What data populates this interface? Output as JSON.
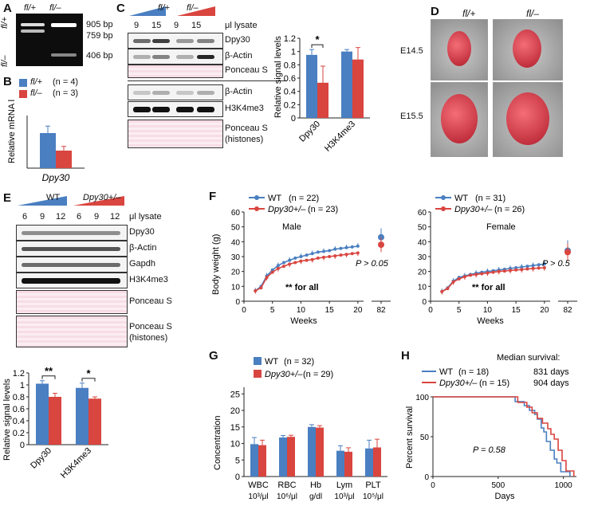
{
  "panels": {
    "A": {
      "letter": "A",
      "col_fl_plus": "fl/+",
      "col_fl_minus": "fl/–",
      "row_fl_plus": "fl/+",
      "row_fl_minus": "fl/–",
      "bands": [
        "905 bp",
        "759 bp",
        "406 bp"
      ]
    },
    "B": {
      "letter": "B",
      "legend": [
        {
          "label": "fl/+",
          "n": "(n = 4)",
          "color": "#4a7fc1"
        },
        {
          "label": "fl/–",
          "n": "(n = 3)",
          "color": "#d9453f"
        }
      ],
      "ylabel": "Relative mRNA levels",
      "xlabel": "Dpy30"
    },
    "C": {
      "letter": "C",
      "groups": [
        "fl/+",
        "fl/–"
      ],
      "lanes": [
        "9",
        "15",
        "9",
        "15"
      ],
      "lysate": "μl lysate",
      "rows": [
        "Dpy30",
        "β-Actin",
        "Ponceau S",
        "β-Actin",
        "H3K4me3",
        "Ponceau S",
        "(histones)"
      ]
    },
    "D": {
      "letter": "D",
      "cols": [
        "fl/+",
        "fl/–"
      ],
      "rows": [
        "E14.5",
        "E15.5"
      ]
    },
    "E": {
      "letter": "E",
      "groups": [
        "WT",
        "Dpy30+/–"
      ],
      "lanes": [
        "6",
        "9",
        "12",
        "6",
        "9",
        "12"
      ],
      "lysate": "μl lysate",
      "rows": [
        "Dpy30",
        "β-Actin",
        "Gapdh",
        "H3K4me3",
        "Ponceau S",
        "Ponceau S",
        "(histones)"
      ]
    },
    "F": {
      "letter": "F",
      "ylabel": "Body weight (g)",
      "xlabel": "Weeks",
      "male": {
        "legend": [
          {
            "label": "WT",
            "n": "(n = 22)"
          },
          {
            "label": "Dpy30+/–",
            "n": "(n = 23)"
          }
        ],
        "title": "Male",
        "pval": "P > 0.05",
        "sig": "** for all"
      },
      "female": {
        "legend": [
          {
            "label": "WT",
            "n": "(n = 31)"
          },
          {
            "label": "Dpy30+/–",
            "n": "(n = 26)"
          }
        ],
        "title": "Female",
        "pval": "P > 0.5",
        "sig": "** for all"
      }
    },
    "G": {
      "letter": "G",
      "legend": [
        {
          "label": "WT",
          "n": "(n = 32)"
        },
        {
          "label": "Dpy30+/–",
          "n": "(n = 29)"
        }
      ],
      "ylabel": "Concentration",
      "cats": [
        "WBC",
        "RBC",
        "Hb",
        "Lym",
        "PLT"
      ],
      "units": [
        "10³/μl",
        "10⁶/μl",
        "g/dl",
        "10³/μl",
        "10⁵/μl"
      ]
    },
    "H": {
      "letter": "H",
      "legend": [
        {
          "label": "WT",
          "n": "(n = 18)",
          "median": "831 days"
        },
        {
          "label": "Dpy30+/–",
          "n": "(n = 15)",
          "median": "904 days"
        }
      ],
      "header": "Median survival:",
      "ylabel": "Percent survival",
      "xlabel": "Days",
      "pval": "P = 0.58"
    }
  },
  "colors": {
    "wt": "#4a7fc1",
    "mut": "#d9453f"
  },
  "chart_data": [
    {
      "id": "B",
      "type": "bar",
      "categories": [
        "Dpy30"
      ],
      "series": [
        {
          "name": "fl/+",
          "values": [
            1.0
          ],
          "err": [
            0.2
          ]
        },
        {
          "name": "fl/–",
          "values": [
            0.5
          ],
          "err": [
            0.12
          ]
        }
      ],
      "ylim": [
        0,
        1.5
      ]
    },
    {
      "id": "C",
      "type": "bar",
      "categories": [
        "Dpy30",
        "H3K4me3"
      ],
      "series": [
        {
          "name": "fl/+",
          "values": [
            0.95,
            1.0
          ],
          "err": [
            0.08,
            0.03
          ]
        },
        {
          "name": "fl/–",
          "values": [
            0.53,
            0.88
          ],
          "err": [
            0.25,
            0.18
          ]
        }
      ],
      "yticks": [
        0,
        0.2,
        0.4,
        0.6,
        0.8,
        1,
        1.2
      ],
      "ylabel": "Relative signal levels",
      "ylim": [
        0,
        1.2
      ],
      "annotations": [
        "*"
      ]
    },
    {
      "id": "E",
      "type": "bar",
      "categories": [
        "Dpy30",
        "H3K4me3"
      ],
      "series": [
        {
          "name": "WT",
          "values": [
            1.02,
            0.95
          ],
          "err": [
            0.05,
            0.08
          ]
        },
        {
          "name": "Dpy30+/–",
          "values": [
            0.8,
            0.77
          ],
          "err": [
            0.06,
            0.03
          ]
        }
      ],
      "yticks": [
        0,
        0.2,
        0.4,
        0.6,
        0.8,
        1,
        1.2
      ],
      "ylabel": "Relative signal levels",
      "ylim": [
        0,
        1.2
      ],
      "annotations": [
        "**",
        "*"
      ]
    },
    {
      "id": "F-male",
      "type": "line",
      "xticks": [
        0,
        5,
        10,
        15,
        20,
        82
      ],
      "yticks": [
        0,
        10,
        20,
        30,
        40,
        50,
        60
      ],
      "ylim": [
        0,
        60
      ],
      "x": [
        2,
        3,
        4,
        5,
        6,
        7,
        8,
        9,
        10,
        11,
        12,
        13,
        14,
        15,
        16,
        17,
        18,
        19,
        20
      ],
      "series": [
        {
          "name": "WT",
          "values": [
            7,
            10,
            17,
            21,
            24,
            26,
            27.5,
            29,
            30,
            31,
            32,
            33,
            33.5,
            34,
            35,
            35.5,
            36,
            36.5,
            37
          ]
        },
        {
          "name": "Dpy30+/–",
          "values": [
            7,
            9,
            16,
            19.5,
            22,
            23.5,
            25,
            26,
            27,
            27.5,
            28,
            29,
            29.5,
            30,
            30.5,
            31,
            31.5,
            32,
            32.5
          ]
        }
      ],
      "week82": [
        {
          "name": "WT",
          "value": 43,
          "err": 6
        },
        {
          "name": "Dpy30+/–",
          "value": 38,
          "err": 5
        }
      ]
    },
    {
      "id": "F-female",
      "type": "line",
      "xticks": [
        0,
        5,
        10,
        15,
        20,
        82
      ],
      "ylim": [
        0,
        60
      ],
      "x": [
        2,
        3,
        4,
        5,
        6,
        7,
        8,
        9,
        10,
        11,
        12,
        13,
        14,
        15,
        16,
        17,
        18,
        19,
        20
      ],
      "series": [
        {
          "name": "WT",
          "values": [
            6.5,
            9,
            13.5,
            16,
            17,
            18,
            18.8,
            19.5,
            20,
            20.5,
            21,
            21.5,
            22,
            22.5,
            23,
            23.5,
            24,
            24.5,
            25
          ]
        },
        {
          "name": "Dpy30+/–",
          "values": [
            6.5,
            8.5,
            13,
            15,
            16.5,
            17.5,
            18,
            18.5,
            19,
            19.5,
            20,
            20.3,
            20.7,
            21,
            21.3,
            21.7,
            22,
            22.3,
            22.5
          ]
        }
      ],
      "week82": [
        {
          "name": "WT",
          "value": 34,
          "err": 7
        },
        {
          "name": "Dpy30+/–",
          "value": 33,
          "err": 6
        }
      ]
    },
    {
      "id": "G",
      "type": "bar",
      "categories": [
        "WBC",
        "RBC",
        "Hb",
        "Lym",
        "PLT"
      ],
      "yticks": [
        0,
        5,
        10,
        15,
        20,
        25
      ],
      "ylim": [
        0,
        27
      ],
      "series": [
        {
          "name": "WT",
          "values": [
            9.8,
            11.8,
            15,
            7.8,
            8.5
          ],
          "err": [
            2,
            0.6,
            0.7,
            1.5,
            2.5
          ]
        },
        {
          "name": "Dpy30+/–",
          "values": [
            9.5,
            12,
            14.8,
            7.5,
            8.8
          ],
          "err": [
            1.5,
            0.5,
            0.6,
            1.2,
            2.5
          ]
        }
      ]
    },
    {
      "id": "H",
      "type": "line",
      "xticks": [
        0,
        500,
        1000
      ],
      "yticks": [
        0,
        50,
        100
      ],
      "xlim": [
        0,
        1100
      ],
      "ylim": [
        0,
        100
      ],
      "series": [
        {
          "name": "WT",
          "x": [
            0,
            580,
            630,
            700,
            740,
            780,
            800,
            830,
            850,
            870,
            900,
            930,
            950,
            980,
            1050
          ],
          "values": [
            100,
            100,
            94,
            89,
            83,
            78,
            72,
            61,
            56,
            44,
            33,
            22,
            17,
            6,
            0
          ]
        },
        {
          "name": "Dpy30+/–",
          "x": [
            0,
            600,
            650,
            720,
            760,
            800,
            840,
            880,
            904,
            930,
            960,
            990,
            1020,
            1080
          ],
          "values": [
            100,
            100,
            93,
            87,
            80,
            73,
            67,
            60,
            53,
            47,
            33,
            20,
            7,
            0
          ]
        }
      ]
    }
  ]
}
